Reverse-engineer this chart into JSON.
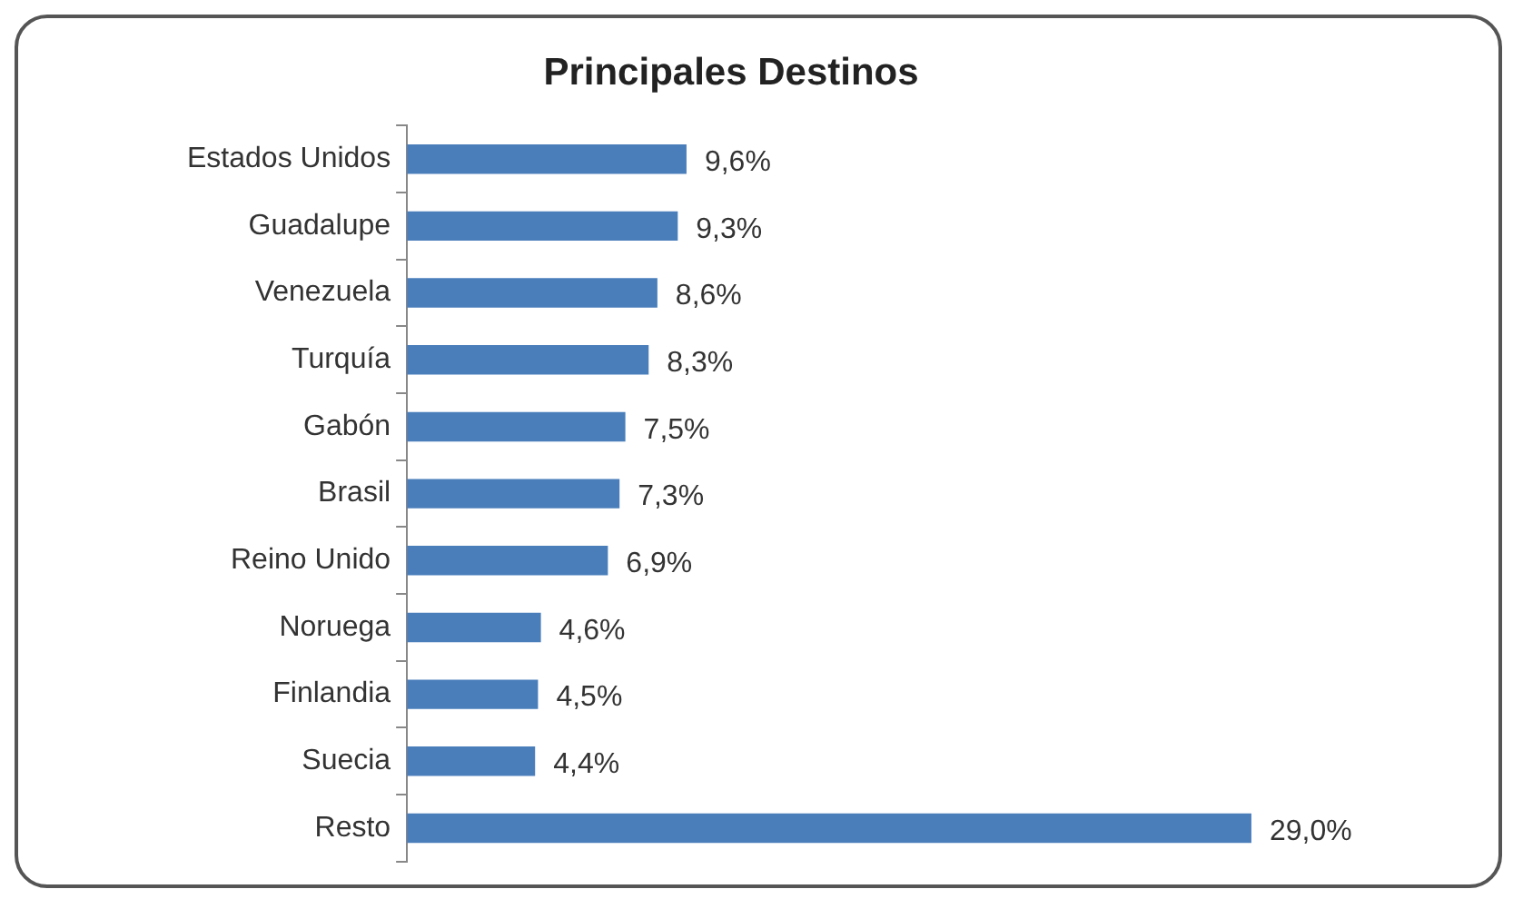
{
  "chart_data": {
    "type": "bar",
    "orientation": "horizontal",
    "title": "Principales Destinos",
    "categories": [
      "Estados Unidos",
      "Guadalupe",
      "Venezuela",
      "Turquía",
      "Gabón",
      "Brasil",
      "Reino Unido",
      "Noruega",
      "Finlandia",
      "Suecia",
      "Resto"
    ],
    "values": [
      9.6,
      9.3,
      8.6,
      8.3,
      7.5,
      7.3,
      6.9,
      4.6,
      4.5,
      4.4,
      29.0
    ],
    "value_labels": [
      "9,6%",
      "9,3%",
      "8,6%",
      "8,3%",
      "7,5%",
      "7,3%",
      "6,9%",
      "4,6%",
      "4,5%",
      "4,4%",
      "29,0%"
    ],
    "color": "#4a7ebb",
    "legend": false,
    "tick_labels": "y"
  }
}
